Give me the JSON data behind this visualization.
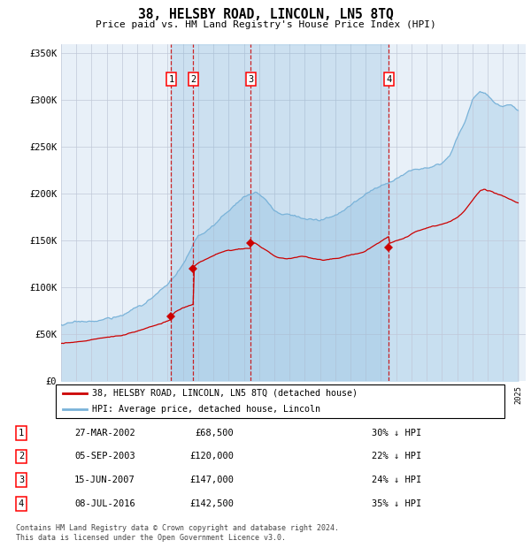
{
  "title": "38, HELSBY ROAD, LINCOLN, LN5 8TQ",
  "subtitle": "Price paid vs. HM Land Registry's House Price Index (HPI)",
  "background_color": "#ffffff",
  "plot_bg_color": "#e8f0f8",
  "grid_color": "#c0c8d8",
  "hpi_line_color": "#7ab3d9",
  "hpi_fill_color": "#c8dff0",
  "price_line_color": "#cc0000",
  "purchases": [
    {
      "date_num": 2002.23,
      "price": 68500,
      "label": "1"
    },
    {
      "date_num": 2003.68,
      "price": 120000,
      "label": "2"
    },
    {
      "date_num": 2007.45,
      "price": 147000,
      "label": "3"
    },
    {
      "date_num": 2016.52,
      "price": 142500,
      "label": "4"
    }
  ],
  "purchase_labels": [
    "1",
    "2",
    "3",
    "4"
  ],
  "purchase_dates_str": [
    "27-MAR-2002",
    "05-SEP-2003",
    "15-JUN-2007",
    "08-JUL-2016"
  ],
  "purchase_prices_str": [
    "£68,500",
    "£120,000",
    "£147,000",
    "£142,500"
  ],
  "purchase_hpi_str": [
    "30% ↓ HPI",
    "22% ↓ HPI",
    "24% ↓ HPI",
    "35% ↓ HPI"
  ],
  "legend_line1": "38, HELSBY ROAD, LINCOLN, LN5 8TQ (detached house)",
  "legend_line2": "HPI: Average price, detached house, Lincoln",
  "footnote": "Contains HM Land Registry data © Crown copyright and database right 2024.\nThis data is licensed under the Open Government Licence v3.0.",
  "xmin": 1995.0,
  "xmax": 2025.5,
  "ymin": 0,
  "ymax": 360000,
  "yticks": [
    0,
    50000,
    100000,
    150000,
    200000,
    250000,
    300000,
    350000
  ],
  "ytick_labels": [
    "£0",
    "£50K",
    "£100K",
    "£150K",
    "£200K",
    "£250K",
    "£300K",
    "£350K"
  ]
}
